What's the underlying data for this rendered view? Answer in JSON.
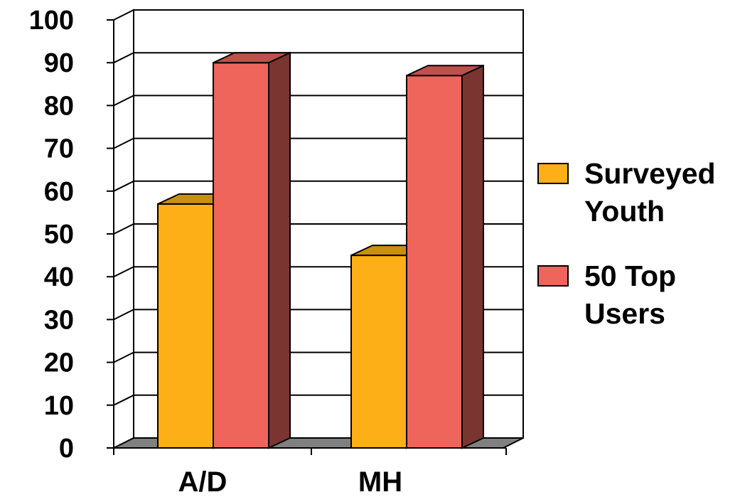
{
  "chart_data": {
    "type": "bar",
    "categories": [
      "A/D",
      "MH"
    ],
    "series": [
      {
        "name": "Surveyed Youth",
        "values": [
          57,
          45
        ],
        "color": "#fcaf17",
        "top_color": "#c89010"
      },
      {
        "name": "50 Top Users",
        "values": [
          90,
          87
        ],
        "color": "#ef655b",
        "top_color": "#c0504a",
        "side_color": "#7b3530"
      }
    ],
    "ylim": [
      0,
      100
    ],
    "yticks": [
      0,
      10,
      20,
      30,
      40,
      50,
      60,
      70,
      80,
      90,
      100
    ],
    "grid": true,
    "style_3d": true,
    "legend": {
      "position": "right",
      "entries": [
        {
          "lines": [
            "Surveyed",
            "Youth"
          ]
        },
        {
          "lines": [
            "50 Top",
            "Users"
          ]
        }
      ]
    }
  }
}
